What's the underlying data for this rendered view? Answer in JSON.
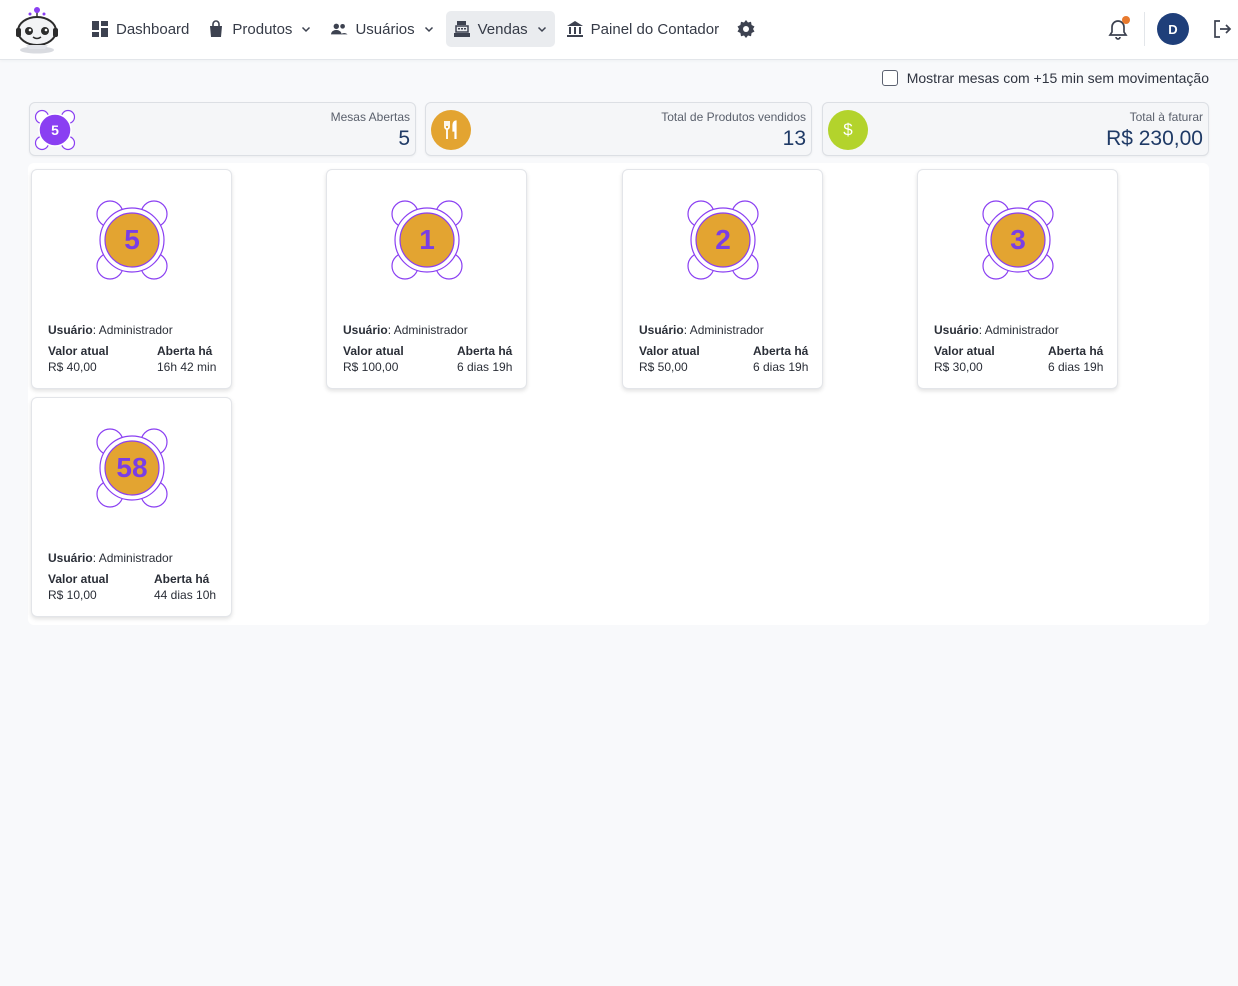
{
  "nav": {
    "items": [
      {
        "label": "Dashboard",
        "icon": "dashboard-icon",
        "dropdown": false,
        "active": false
      },
      {
        "label": "Produtos",
        "icon": "shopping-bag-icon",
        "dropdown": true,
        "active": false
      },
      {
        "label": "Usuários",
        "icon": "users-icon",
        "dropdown": true,
        "active": false
      },
      {
        "label": "Vendas",
        "icon": "cash-register-icon",
        "dropdown": true,
        "active": true
      },
      {
        "label": "Painel do Contador",
        "icon": "bank-icon",
        "dropdown": false,
        "active": false
      }
    ],
    "settings_icon": "gear-icon"
  },
  "user": {
    "avatar_initial": "D"
  },
  "filter": {
    "label": "Mostrar mesas com +15 min sem movimentação",
    "checked": false
  },
  "stats": {
    "open_tables": {
      "label": "Mesas Abertas",
      "value": "5",
      "badge": "5",
      "color": "#8a3ff2"
    },
    "products_sold": {
      "label": "Total de Produtos vendidos",
      "value": "13",
      "icon": "fork-knife-icon",
      "color": "#e3a431"
    },
    "to_invoice": {
      "label": "Total à faturar",
      "value": "R$ 230,00",
      "badge": "$",
      "color": "#b3d32c"
    }
  },
  "mesa_labels": {
    "user": "Usuário",
    "value": "Valor atual",
    "opened": "Aberta há"
  },
  "mesas": [
    {
      "number": "5",
      "user": "Administrador",
      "value": "R$ 40,00",
      "opened": "16h 42 min"
    },
    {
      "number": "1",
      "user": "Administrador",
      "value": "R$ 100,00",
      "opened": "6 dias 19h"
    },
    {
      "number": "2",
      "user": "Administrador",
      "value": "R$ 50,00",
      "opened": "6 dias 19h"
    },
    {
      "number": "3",
      "user": "Administrador",
      "value": "R$ 30,00",
      "opened": "6 dias 19h"
    },
    {
      "number": "58",
      "user": "Administrador",
      "value": "R$ 10,00",
      "opened": "44 dias 10h"
    }
  ],
  "colors": {
    "accent_purple": "#7a3ee6",
    "table_orange": "#e3a431",
    "avatar_blue": "#1f3f7a"
  }
}
